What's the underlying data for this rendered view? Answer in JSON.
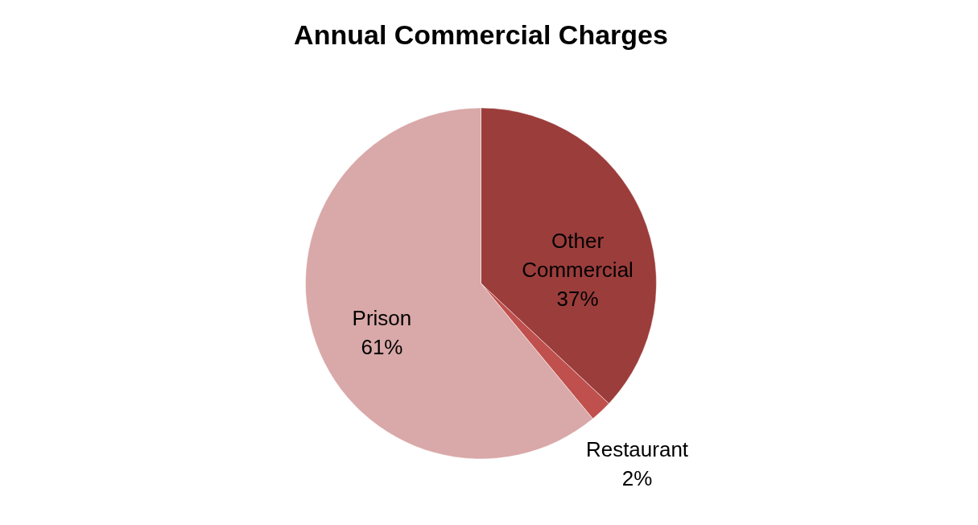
{
  "chart_data": {
    "type": "pie",
    "title": "Annual Commercial Charges",
    "categories": [
      "Other Commercial",
      "Restaurant",
      "Prison"
    ],
    "values": [
      37,
      2,
      61
    ],
    "value_labels": [
      "37%",
      "2%",
      "61%"
    ],
    "colors": [
      "#9b3d3b",
      "#c0504d",
      "#d9a8a8"
    ],
    "legend": false
  }
}
